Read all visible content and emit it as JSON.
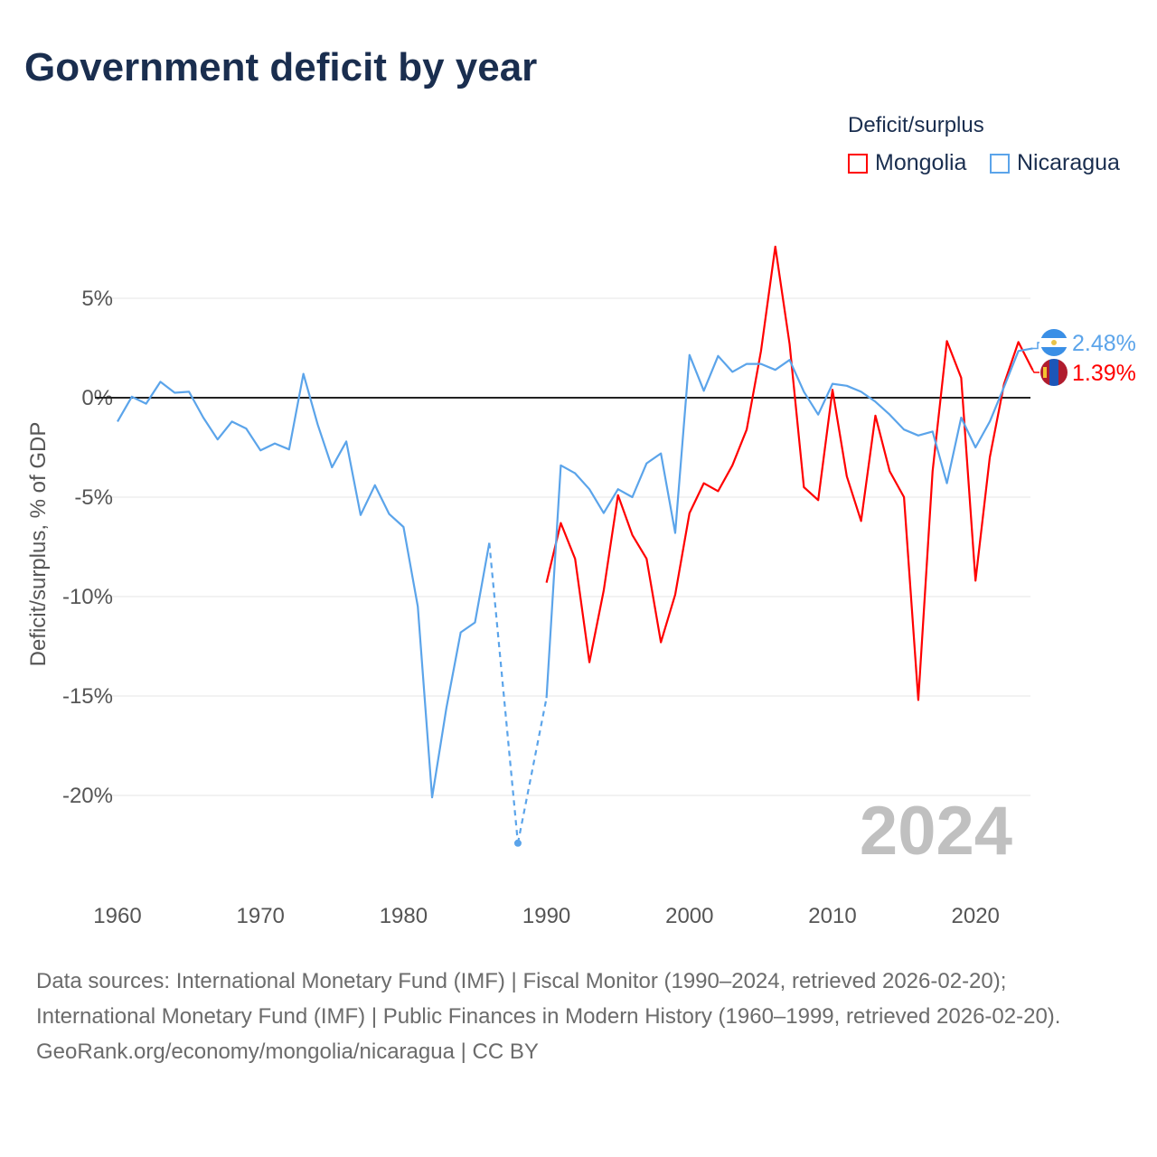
{
  "chart_data": {
    "type": "line",
    "title": "Government deficit by year",
    "ylabel": "Deficit/surplus, % of GDP",
    "xlabel": "",
    "xlim": [
      1960,
      2024
    ],
    "ylim": [
      -25,
      10
    ],
    "x_ticks": [
      1960,
      1970,
      1980,
      1990,
      2000,
      2010,
      2020
    ],
    "x_tick_labels": [
      "1960",
      "1970",
      "1980",
      "1990",
      "2000",
      "2010",
      "2020"
    ],
    "y_ticks": [
      5,
      0,
      -5,
      -10,
      -15,
      -20
    ],
    "y_tick_labels": [
      "5%",
      "0%",
      "-5%",
      "-10%",
      "-15%",
      "-20%"
    ],
    "grid": true,
    "year_watermark": "2024",
    "legend": {
      "title": "Deficit/surplus",
      "placement": "top-right"
    },
    "series": [
      {
        "name": "Mongolia",
        "color": "#ff0000",
        "end_label": "1.39%",
        "flag": "mongolia-flag-icon",
        "x": [
          1990,
          1991,
          1992,
          1993,
          1994,
          1995,
          1996,
          1997,
          1998,
          1999,
          2000,
          2001,
          2002,
          2003,
          2004,
          2005,
          2006,
          2007,
          2008,
          2009,
          2010,
          2011,
          2012,
          2013,
          2014,
          2015,
          2016,
          2017,
          2018,
          2019,
          2020,
          2021,
          2022,
          2023,
          2024
        ],
        "values": [
          -9.3,
          -6.3,
          -8.1,
          -13.3,
          -9.7,
          -4.9,
          -6.9,
          -8.1,
          -12.3,
          -9.9,
          -5.8,
          -4.3,
          -4.7,
          -3.4,
          -1.6,
          2.35,
          7.6,
          2.7,
          -4.5,
          -5.15,
          0.4,
          -3.95,
          -6.2,
          -0.9,
          -3.7,
          -5.0,
          -15.2,
          -3.7,
          2.85,
          1.0,
          -9.2,
          -3.0,
          0.7,
          2.8,
          1.39
        ]
      },
      {
        "name": "Nicaragua",
        "color": "#5ba4ea",
        "end_label": "2.48%",
        "flag": "nicaragua-flag-icon",
        "x": [
          1960,
          1961,
          1962,
          1963,
          1964,
          1965,
          1966,
          1967,
          1968,
          1969,
          1970,
          1971,
          1972,
          1973,
          1974,
          1975,
          1976,
          1977,
          1978,
          1979,
          1980,
          1981,
          1982,
          1983,
          1984,
          1985,
          1986,
          1988,
          1990,
          1991,
          1992,
          1993,
          1994,
          1995,
          1996,
          1997,
          1998,
          1999,
          2000,
          2001,
          2002,
          2003,
          2004,
          2005,
          2006,
          2007,
          2008,
          2009,
          2010,
          2011,
          2012,
          2013,
          2014,
          2015,
          2016,
          2017,
          2018,
          2019,
          2020,
          2021,
          2022,
          2023,
          2024
        ],
        "values": [
          -1.2,
          0.05,
          -0.3,
          0.8,
          0.25,
          0.3,
          -1.0,
          -2.1,
          -1.2,
          -1.55,
          -2.65,
          -2.3,
          -2.6,
          1.2,
          -1.35,
          -3.5,
          -2.2,
          -5.9,
          -4.4,
          -5.85,
          -6.5,
          -10.5,
          -20.1,
          -15.6,
          -11.8,
          -11.3,
          -7.3,
          -22.4,
          -15.1,
          -3.4,
          -3.8,
          -4.6,
          -5.8,
          -4.6,
          -5.0,
          -3.3,
          -2.8,
          -6.8,
          2.15,
          0.35,
          2.1,
          1.3,
          1.7,
          1.7,
          1.4,
          1.9,
          0.3,
          -0.85,
          0.7,
          0.6,
          0.3,
          -0.2,
          -0.85,
          -1.6,
          -1.9,
          -1.7,
          -4.3,
          -1.0,
          -2.5,
          -1.2,
          0.55,
          2.35,
          2.48
        ],
        "gap_years": [
          1987,
          1989
        ]
      }
    ]
  },
  "footer": {
    "sources": "Data sources: International Monetary Fund (IMF) | Fiscal Monitor (1990–2024, retrieved 2026-02-20); International Monetary Fund (IMF) | Public Finances in Modern History (1960–1999, retrieved 2026-02-20).",
    "credit": "GeoRank.org/economy/mongolia/nicaragua | CC BY"
  }
}
